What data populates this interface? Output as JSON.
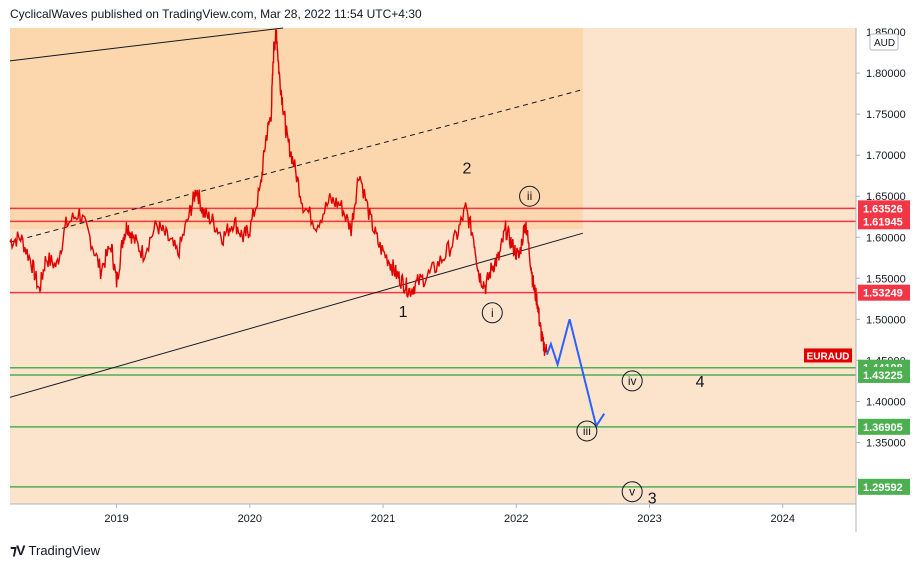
{
  "header": {
    "published_text": "CyclicalWaves published on TradingView.com, Mar 28, 2022 11:54 UTC+4:30"
  },
  "footer": {
    "brand": "TradingView",
    "logo": "tradingview-logo-icon"
  },
  "colors": {
    "background": "#fbe3cc",
    "projection_zone": "#fcd7ad",
    "candle": "#e00000",
    "forecast": "#2962ff",
    "resistance": "#f23645",
    "support": "#4caf50",
    "symbol_label": "#e00000"
  },
  "chart_data": {
    "type": "line",
    "symbol": "EURAUD",
    "currency": "AUD",
    "price_axis_top_label": "1.85000",
    "x_ticks": [
      "2019",
      "2020",
      "2021",
      "2022",
      "2023",
      "2024"
    ],
    "y_ticks": [
      "1.80000",
      "1.75000",
      "1.70000",
      "1.65000",
      "1.60000",
      "1.55000",
      "1.50000",
      "1.45000",
      "1.40000",
      "1.35000"
    ],
    "ylim": [
      1.275,
      1.855
    ],
    "xlim": [
      2018.2,
      2024.55
    ],
    "price": {
      "x": [
        2018.2,
        2018.28,
        2018.36,
        2018.42,
        2018.47,
        2018.55,
        2018.62,
        2018.72,
        2018.8,
        2018.88,
        2018.96,
        2019.0,
        2019.05,
        2019.08,
        2019.12,
        2019.2,
        2019.3,
        2019.38,
        2019.46,
        2019.55,
        2019.6,
        2019.65,
        2019.72,
        2019.8,
        2019.88,
        2019.95,
        2020.0,
        2020.08,
        2020.12,
        2020.16,
        2020.18,
        2020.2,
        2020.22,
        2020.25,
        2020.28,
        2020.33,
        2020.4,
        2020.5,
        2020.6,
        2020.68,
        2020.76,
        2020.82,
        2020.9,
        2020.97,
        2021.05,
        2021.1,
        2021.15,
        2021.2,
        2021.26,
        2021.35,
        2021.45,
        2021.55,
        2021.62,
        2021.68,
        2021.72,
        2021.77,
        2021.82,
        2021.87,
        2021.92,
        2021.97,
        2022.02,
        2022.07,
        2022.1,
        2022.13,
        2022.16,
        2022.18,
        2022.2,
        2022.23
      ],
      "y": [
        1.595,
        1.6,
        1.57,
        1.535,
        1.575,
        1.565,
        1.615,
        1.63,
        1.6,
        1.56,
        1.59,
        1.545,
        1.6,
        1.615,
        1.6,
        1.58,
        1.615,
        1.6,
        1.58,
        1.63,
        1.66,
        1.63,
        1.62,
        1.6,
        1.62,
        1.6,
        1.61,
        1.66,
        1.72,
        1.75,
        1.83,
        1.85,
        1.8,
        1.76,
        1.72,
        1.69,
        1.64,
        1.615,
        1.645,
        1.64,
        1.61,
        1.68,
        1.625,
        1.59,
        1.57,
        1.555,
        1.545,
        1.535,
        1.545,
        1.555,
        1.575,
        1.6,
        1.635,
        1.6,
        1.555,
        1.54,
        1.565,
        1.575,
        1.61,
        1.59,
        1.575,
        1.62,
        1.58,
        1.54,
        1.52,
        1.49,
        1.47,
        1.46
      ]
    },
    "channel_lines": [
      {
        "name": "upper",
        "style": "solid",
        "x": [
          2018.2,
          2020.25
        ],
        "y": [
          1.815,
          1.87
        ]
      },
      {
        "name": "mid",
        "style": "dashed",
        "x": [
          2018.2,
          2022.5
        ],
        "y": [
          1.594,
          1.78
        ]
      },
      {
        "name": "lower",
        "style": "solid",
        "x": [
          2018.2,
          2022.5
        ],
        "y": [
          1.405,
          1.605
        ]
      }
    ],
    "projection_zone": {
      "x": [
        2018.2,
        2022.5
      ],
      "y": [
        1.61,
        1.86
      ]
    },
    "forecast": {
      "x": [
        2022.23,
        2022.26,
        2022.31,
        2022.4,
        2022.6,
        2022.66
      ],
      "y": [
        1.457,
        1.47,
        1.445,
        1.5,
        1.37,
        1.385
      ]
    },
    "resistance_levels": [
      "1.63526",
      "1.61945",
      "1.53249"
    ],
    "support_levels": [
      "1.44108",
      "1.43225",
      "1.36905",
      "1.29592"
    ],
    "symbol_label_price": "1.45600",
    "wave_labels": [
      {
        "text": "1",
        "x": 2021.15,
        "y": 1.51,
        "circled": false
      },
      {
        "text": "2",
        "x": 2021.63,
        "y": 1.685,
        "circled": false
      },
      {
        "text": "i",
        "x": 2021.82,
        "y": 1.508,
        "circled": true
      },
      {
        "text": "ii",
        "x": 2022.1,
        "y": 1.65,
        "circled": true
      },
      {
        "text": "iii",
        "x": 2022.53,
        "y": 1.364,
        "circled": true
      },
      {
        "text": "iv",
        "x": 2022.87,
        "y": 1.425,
        "circled": true
      },
      {
        "text": "4",
        "x": 2023.38,
        "y": 1.425,
        "circled": false
      },
      {
        "text": "v",
        "x": 2022.87,
        "y": 1.29,
        "circled": true
      },
      {
        "text": "3",
        "x": 2023.02,
        "y": 1.283,
        "circled": false
      }
    ]
  }
}
